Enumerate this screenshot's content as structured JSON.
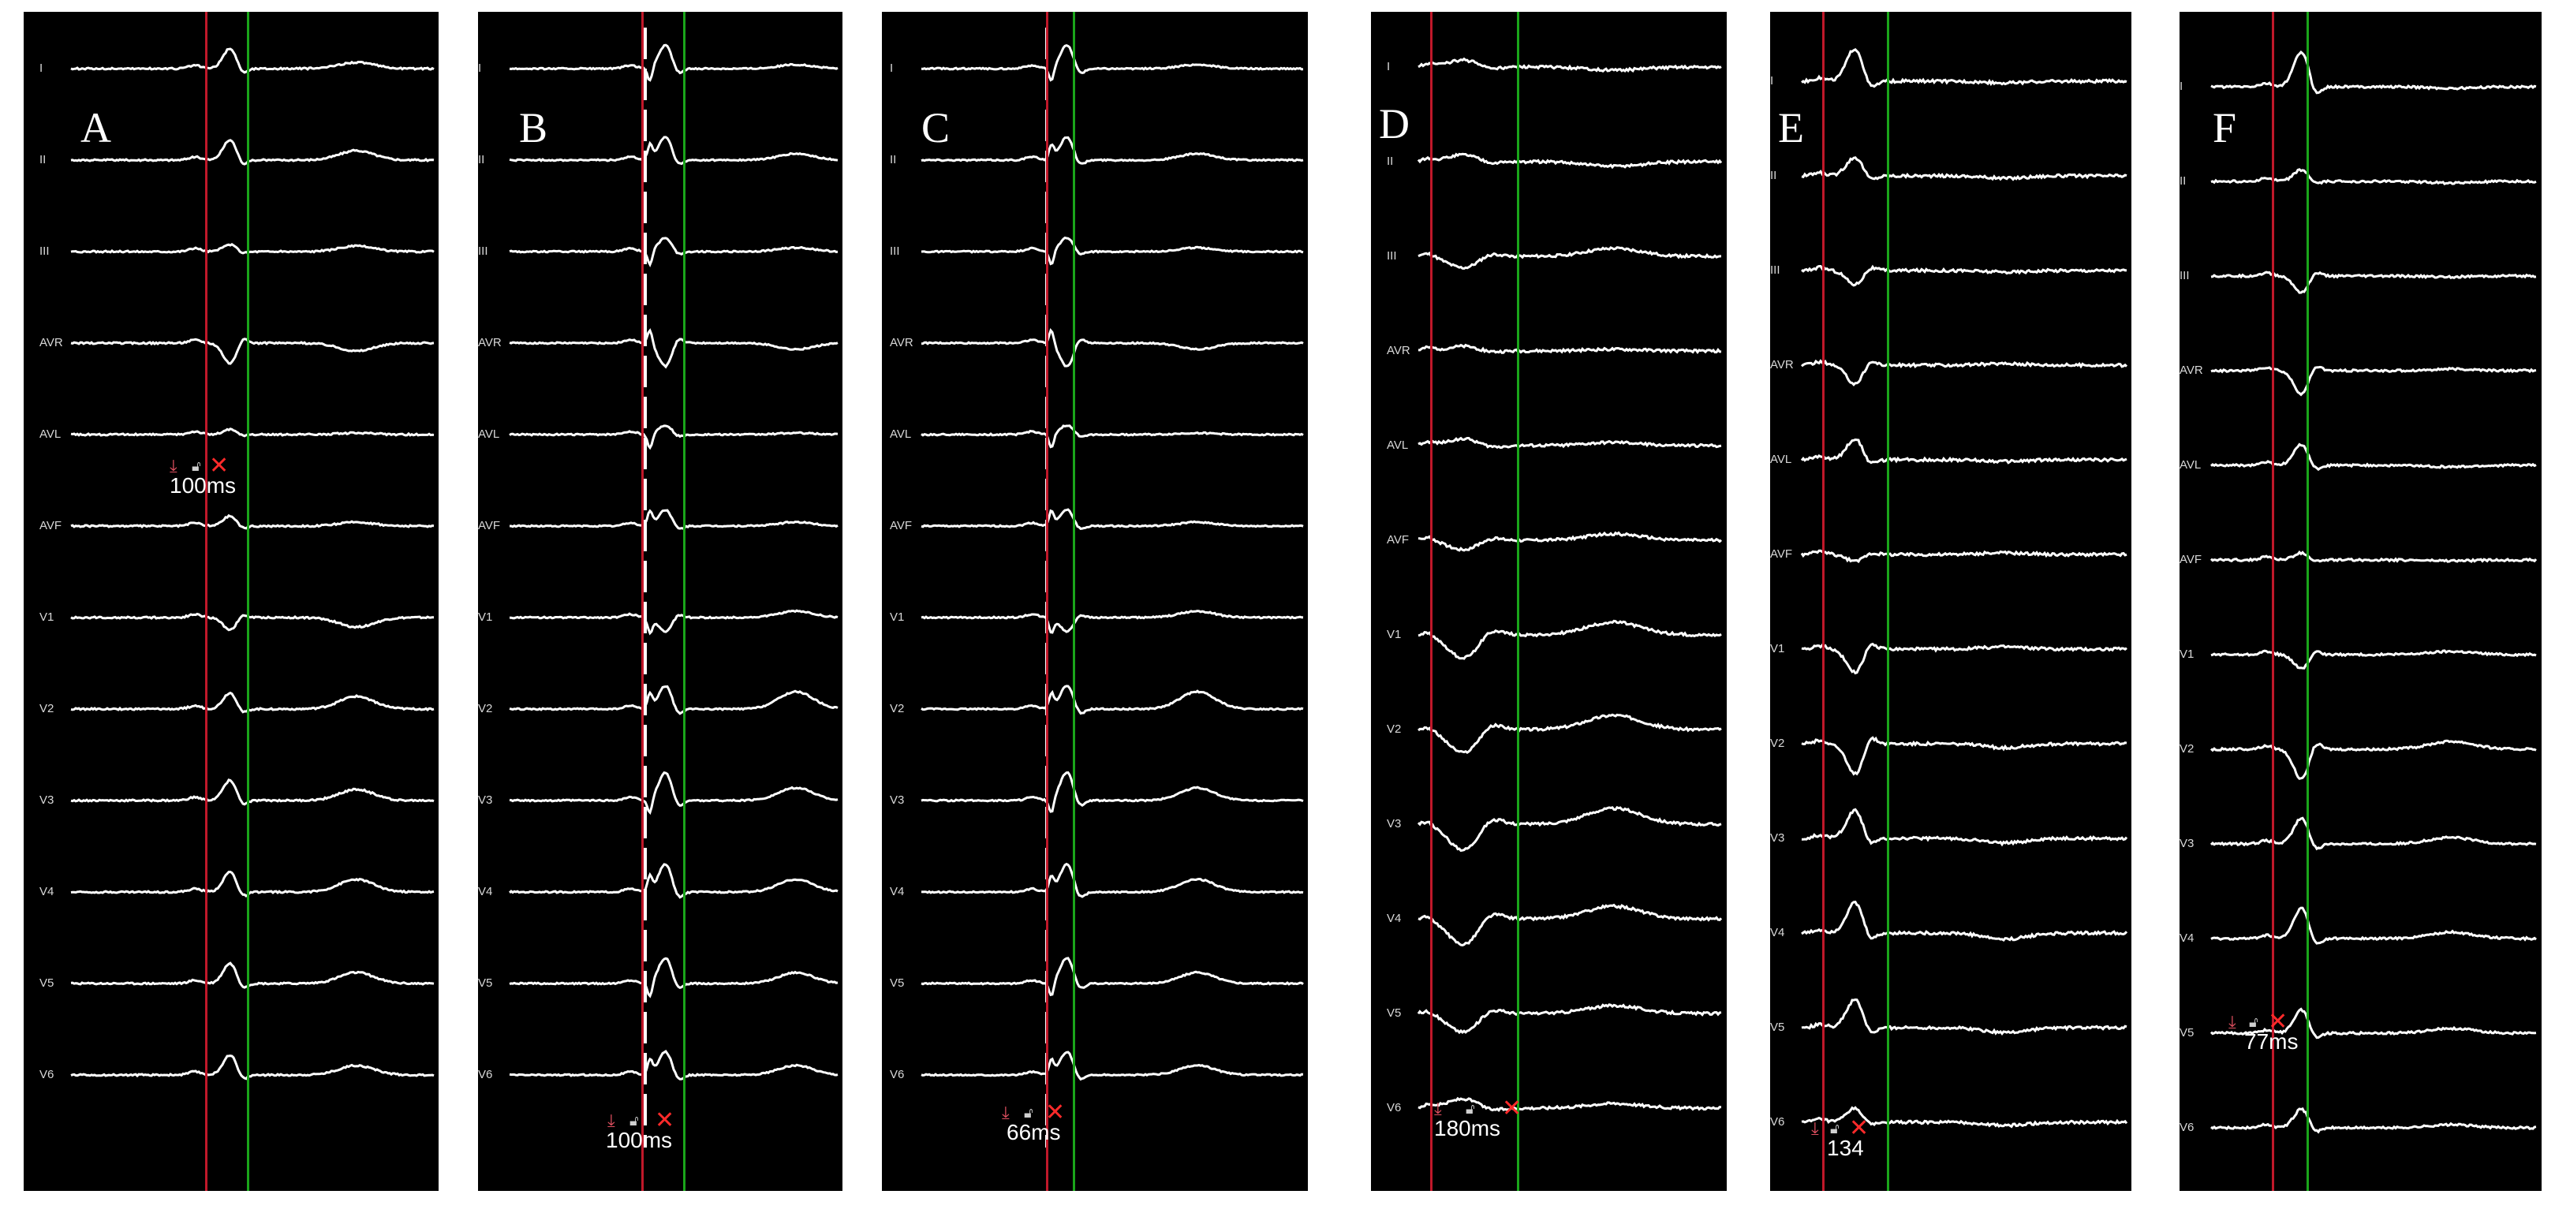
{
  "colors": {
    "panel_bg": "#000000",
    "trace": "#ffffff",
    "red_marker": "#c0182a",
    "green_marker": "#1aa51a"
  },
  "panels": [
    {
      "id": "A",
      "letter": "A",
      "leads": [
        "I",
        "II",
        "III",
        "AVR",
        "AVL",
        "AVF",
        "V1",
        "V2",
        "V3",
        "V4",
        "V5",
        "V6"
      ],
      "caliper": {
        "value": "100ms"
      }
    },
    {
      "id": "B",
      "letter": "B",
      "leads": [
        "I",
        "II",
        "III",
        "AVR",
        "AVL",
        "AVF",
        "V1",
        "V2",
        "V3",
        "V4",
        "V5",
        "V6"
      ],
      "caliper": {
        "value": "100ms"
      }
    },
    {
      "id": "C",
      "letter": "C",
      "leads": [
        "I",
        "II",
        "III",
        "AVR",
        "AVL",
        "AVF",
        "V1",
        "V2",
        "V3",
        "V4",
        "V5",
        "V6"
      ],
      "caliper": {
        "value": "66ms"
      }
    },
    {
      "id": "D",
      "letter": "D",
      "leads": [
        "I",
        "II",
        "III",
        "AVR",
        "AVL",
        "AVF",
        "V1",
        "V2",
        "V3",
        "V4",
        "V5",
        "V6"
      ],
      "caliper": {
        "value": "180ms"
      }
    },
    {
      "id": "E",
      "letter": "E",
      "leads": [
        "I",
        "II",
        "III",
        "AVR",
        "AVL",
        "AVF",
        "V1",
        "V2",
        "V3",
        "V4",
        "V5",
        "V6"
      ],
      "caliper": {
        "value": "134"
      }
    },
    {
      "id": "F",
      "letter": "F",
      "leads": [
        "I",
        "II",
        "III",
        "AVR",
        "AVL",
        "AVF",
        "V1",
        "V2",
        "V3",
        "V4",
        "V5",
        "V6"
      ],
      "caliper": {
        "value": "77ms"
      }
    }
  ],
  "icons": {
    "download": "download-icon",
    "lock": "lock-icon",
    "close": "close-icon"
  }
}
